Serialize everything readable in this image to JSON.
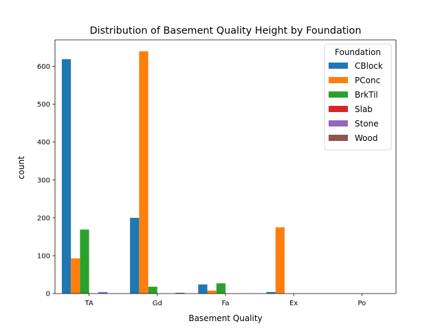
{
  "chart_data": {
    "type": "bar",
    "title": "Distribution of Basement Quality Height by Foundation",
    "xlabel": "Basement Quality",
    "ylabel": "count",
    "categories": [
      "TA",
      "Gd",
      "Fa",
      "Ex",
      "Po"
    ],
    "ylim": [
      0,
      670
    ],
    "yticks": [
      0,
      100,
      200,
      300,
      400,
      500,
      600
    ],
    "grid": false,
    "legend": {
      "title": "Foundation",
      "placement": "top-right"
    },
    "series": [
      {
        "name": "CBlock",
        "color": "#1f77b4",
        "values": [
          619,
          200,
          24,
          4,
          0
        ]
      },
      {
        "name": "PConc",
        "color": "#ff7f0e",
        "values": [
          93,
          640,
          8,
          175,
          0
        ]
      },
      {
        "name": "BrkTil",
        "color": "#2ca02c",
        "values": [
          169,
          18,
          27,
          0,
          0
        ]
      },
      {
        "name": "Slab",
        "color": "#d62728",
        "values": [
          0,
          0,
          0,
          0,
          0
        ]
      },
      {
        "name": "Stone",
        "color": "#9467bd",
        "values": [
          4,
          0,
          0,
          0,
          0
        ]
      },
      {
        "name": "Wood",
        "color": "#8c564b",
        "values": [
          0,
          2,
          0,
          0,
          0
        ]
      }
    ]
  }
}
